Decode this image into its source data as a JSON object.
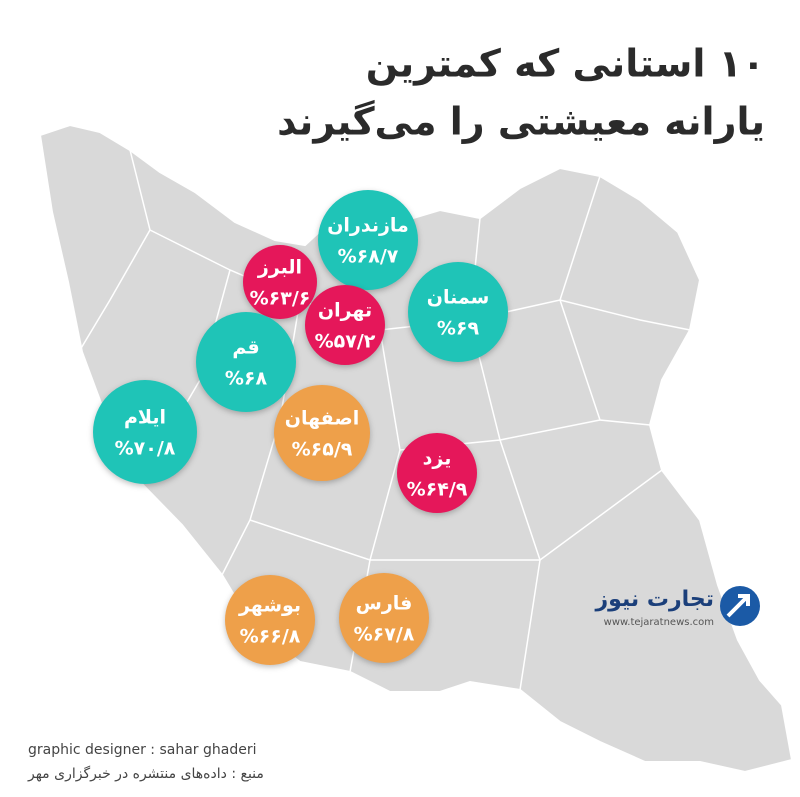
{
  "header": {
    "title_line1": "۱۰ استانی که کمترین",
    "title_line2": "یارانه معیشتی را می‌گیرند"
  },
  "provinces": [
    {
      "name": "مازندران",
      "label": "%۶۸/۷",
      "color": "#1fc4b7"
    },
    {
      "name": "البرز",
      "label": "%۶۳/۶",
      "color": "#e5175a"
    },
    {
      "name": "سمنان",
      "label": "%۶۹",
      "color": "#1fc4b7"
    },
    {
      "name": "تهران",
      "label": "%۵۷/۲",
      "color": "#e5175a"
    },
    {
      "name": "قم",
      "label": "%۶۸",
      "color": "#1fc4b7"
    },
    {
      "name": "ایلام",
      "label": "%۷۰/۸",
      "color": "#1fc4b7"
    },
    {
      "name": "اصفهان",
      "label": "%۶۵/۹",
      "color": "#eea04a"
    },
    {
      "name": "یزد",
      "label": "%۶۴/۹",
      "color": "#e5175a"
    },
    {
      "name": "بوشهر",
      "label": "%۶۶/۸",
      "color": "#eea04a"
    },
    {
      "name": "فارس",
      "label": "%۶۷/۸",
      "color": "#eea04a"
    }
  ],
  "logo": {
    "name": "تجارت نیوز",
    "url": "www.tejaratnews.com"
  },
  "footer": {
    "designer": "graphic designer : sahar ghaderi",
    "source": "منبع : داده‌های منتشره در خبرگزاری مهر"
  }
}
